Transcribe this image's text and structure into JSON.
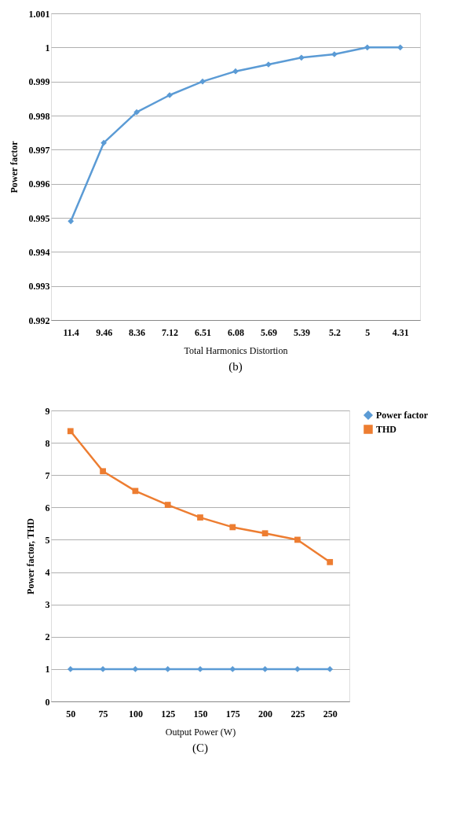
{
  "chart_data": [
    {
      "type": "line",
      "xlabel": "Total Harmonics Distortion",
      "ylabel": "Power factor",
      "annotations": [
        "(b)"
      ],
      "categories": [
        "11.4",
        "9.46",
        "8.36",
        "7.12",
        "6.51",
        "6.08",
        "5.69",
        "5.39",
        "5.2",
        "5",
        "4.31"
      ],
      "series": [
        {
          "color": "#5b9bd5",
          "marker": "diamond",
          "values": [
            0.9949,
            0.9972,
            0.9981,
            0.9986,
            0.999,
            0.9993,
            0.9995,
            0.9997,
            0.9998,
            1.0,
            1.0
          ]
        }
      ],
      "ylim": [
        0.992,
        1.001
      ],
      "yticks": [
        0.992,
        0.993,
        0.994,
        0.995,
        0.996,
        0.997,
        0.998,
        0.999,
        1,
        1.001
      ],
      "grid": "y"
    },
    {
      "type": "line",
      "xlabel": "Output Power (W)",
      "ylabel": "Power factor, THD",
      "annotations": [
        "(C)"
      ],
      "categories": [
        "50",
        "75",
        "100",
        "125",
        "150",
        "175",
        "200",
        "225",
        "250"
      ],
      "series": [
        {
          "name": "Power factor",
          "color": "#5b9bd5",
          "marker": "diamond",
          "values": [
            1,
            1,
            1,
            1,
            1,
            1,
            1,
            1,
            1
          ]
        },
        {
          "name": "THD",
          "color": "#ed7d31",
          "marker": "square",
          "values": [
            8.36,
            7.12,
            6.51,
            6.08,
            5.69,
            5.39,
            5.2,
            5,
            4.31
          ]
        }
      ],
      "ylim": [
        0,
        9
      ],
      "yticks": [
        0,
        1,
        2,
        3,
        4,
        5,
        6,
        7,
        8,
        9
      ],
      "grid": "y",
      "legend": "right"
    }
  ]
}
